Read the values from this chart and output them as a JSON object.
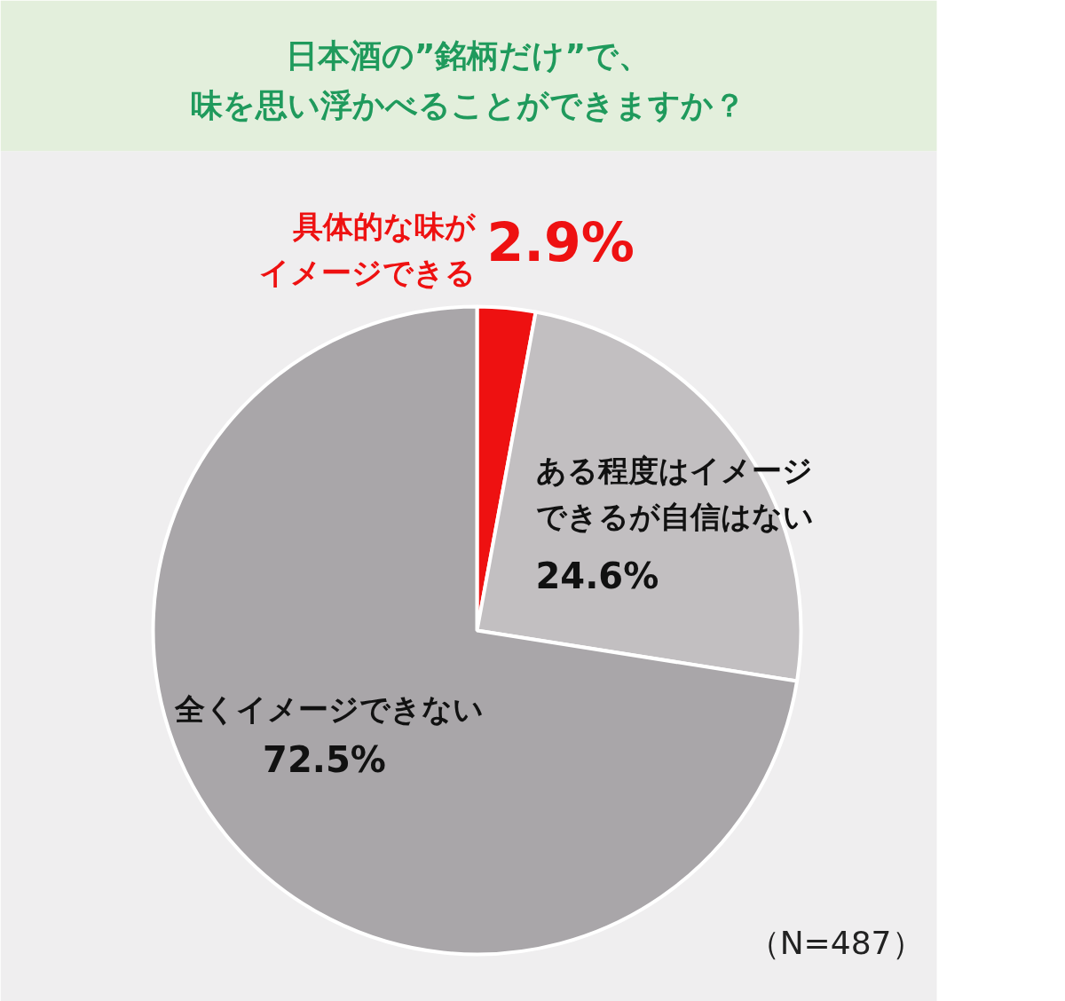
{
  "chart_data": {
    "type": "pie",
    "title": "日本酒の”銘柄だけ”で、味を思い浮かべることができますか？",
    "categories": [
      "具体的な味がイメージできる",
      "ある程度はイメージできるが自信はない",
      "全くイメージできない"
    ],
    "values": [
      2.9,
      24.6,
      72.5
    ],
    "value_labels": [
      "2.9%",
      "24.6%",
      "72.5%"
    ],
    "colors": [
      "#ee1111",
      "#c2bfc1",
      "#a9a6a9"
    ],
    "annotations": [
      "（N=487）"
    ]
  }
}
